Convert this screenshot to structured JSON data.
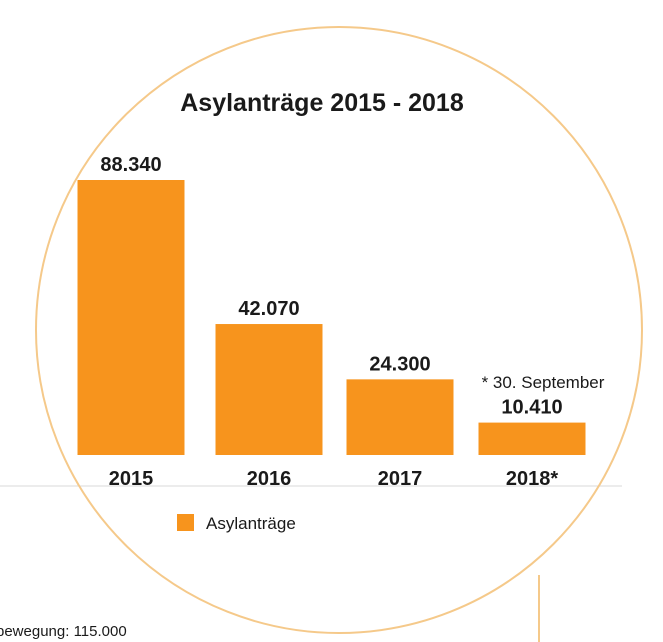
{
  "chart_data": {
    "type": "bar",
    "title": "Asylanträge 2015 - 2018",
    "categories": [
      "2015",
      "2016",
      "2017",
      "2018*"
    ],
    "values": [
      88340,
      42070,
      24300,
      10410
    ],
    "value_labels": [
      "88.340",
      "42.070",
      "24.300",
      "10.410"
    ],
    "series": [
      {
        "name": "Asylanträge",
        "values": [
          88340,
          42070,
          24300,
          10410
        ]
      }
    ],
    "annotation": "* 30. September",
    "xlabel": "",
    "ylabel": "",
    "ylim": [
      0,
      88340
    ],
    "grid": false,
    "legend": "bottom-left",
    "bar_color": "#f7941d",
    "circle_color": "#f5c98a",
    "text_color": "#1a1a1a"
  },
  "background_text": "bewegung: 115.000"
}
